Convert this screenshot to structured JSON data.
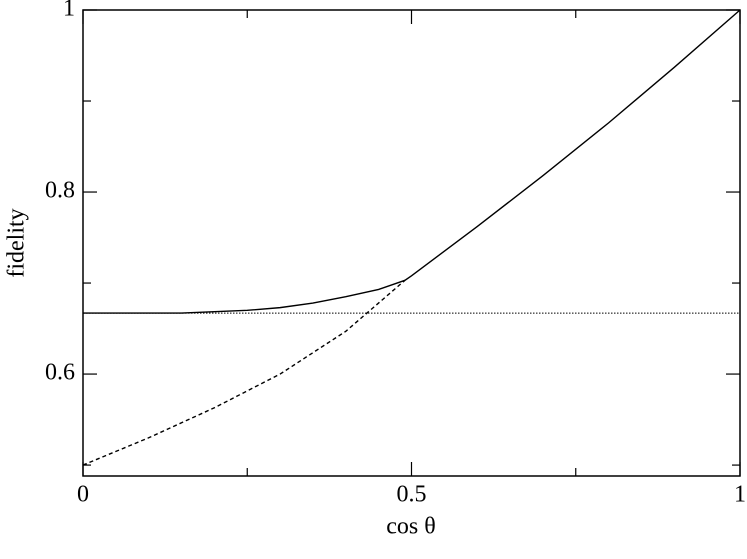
{
  "chart_data": {
    "type": "line",
    "xlabel": "cos θ",
    "ylabel": "fidelity",
    "xlim": [
      0,
      1
    ],
    "ylim": [
      0.488,
      1
    ],
    "xticks": [
      0,
      0.5,
      1
    ],
    "yticks": [
      0.6,
      0.8,
      1
    ],
    "xminor": [
      0.25,
      0.75
    ],
    "yminor": [
      0.5,
      0.7,
      0.9
    ],
    "grid": false,
    "series": [
      {
        "color": "#000000",
        "dash": "solid",
        "x": [
          0,
          0.15,
          0.25,
          0.3,
          0.35,
          0.4,
          0.45,
          0.49,
          0.5,
          0.6,
          0.7,
          0.8,
          0.9,
          1
        ],
        "values": [
          0.667,
          0.667,
          0.67,
          0.673,
          0.678,
          0.685,
          0.693,
          0.703,
          0.708,
          0.762,
          0.818,
          0.876,
          0.937,
          1
        ]
      },
      {
        "color": "#000000",
        "dash": "dashed",
        "x": [
          0,
          0.1,
          0.2,
          0.3,
          0.4,
          0.49
        ],
        "values": [
          0.5,
          0.53,
          0.563,
          0.6,
          0.647,
          0.703
        ]
      },
      {
        "color": "#000000",
        "dash": "dotted",
        "x": [
          0,
          1
        ],
        "values": [
          0.667,
          0.667
        ]
      }
    ]
  }
}
